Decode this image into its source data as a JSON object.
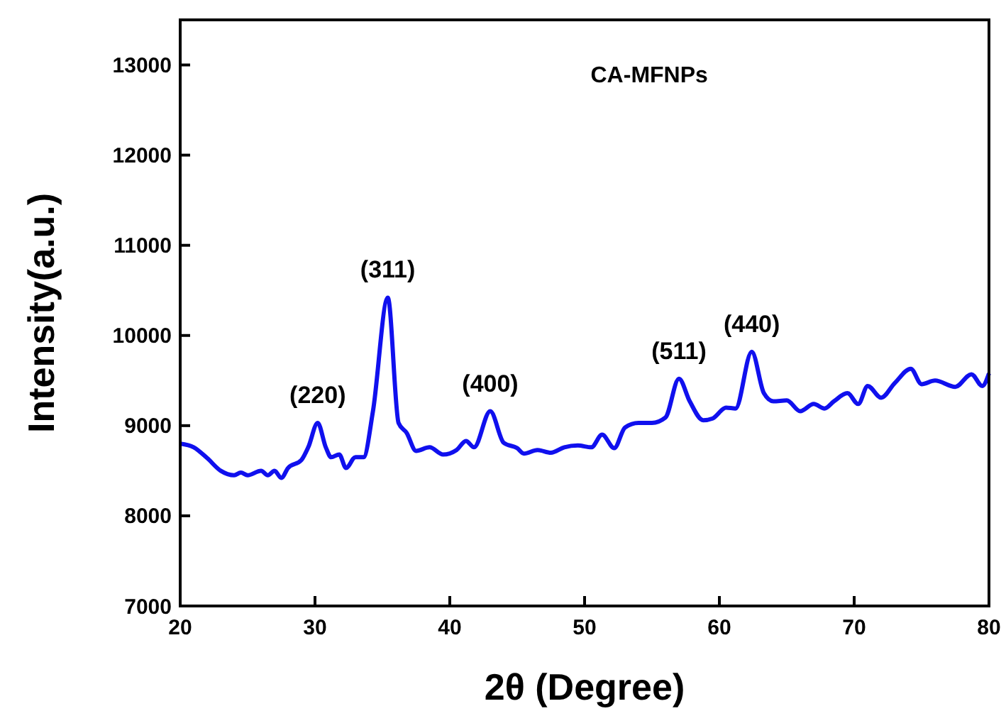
{
  "chart_data": {
    "type": "line",
    "xlabel": "2θ (Degree)",
    "ylabel": "Intensity(a.u.)",
    "xlim": [
      20,
      80
    ],
    "xticks": [
      20,
      30,
      40,
      50,
      60,
      70,
      80
    ],
    "ylim": [
      7000,
      13500
    ],
    "yticks": [
      7000,
      8000,
      9000,
      10000,
      11000,
      12000,
      13000
    ],
    "grid": false,
    "marker": "none",
    "line_style": "solid",
    "annotations": [
      "CA-MFNPs",
      {
        "text": "(220)",
        "x": 30.2,
        "y": 9030
      },
      {
        "text": "(311)",
        "x": 35.4,
        "y": 10420
      },
      {
        "text": "(400)",
        "x": 43,
        "y": 9160
      },
      {
        "text": "(511)",
        "x": 57,
        "y": 9520
      },
      {
        "text": "(440)",
        "x": 62.4,
        "y": 9820
      }
    ],
    "series": [
      {
        "color": "#1010ee",
        "x": [
          20,
          21,
          22,
          23,
          24,
          24.5,
          25,
          26,
          26.5,
          27,
          27.5,
          28,
          29,
          29.5,
          30.2,
          30.8,
          31.2,
          31.8,
          32.3,
          33,
          33.6,
          34.3,
          35.4,
          36.2,
          36.8,
          37.5,
          38.5,
          39.5,
          40.5,
          41.2,
          41.8,
          43,
          44,
          45,
          45.5,
          46.5,
          47.5,
          48.5,
          49.5,
          50.5,
          51.3,
          52.2,
          53,
          54,
          55,
          56,
          57,
          57.8,
          58.8,
          59.5,
          60.5,
          61.2,
          62.4,
          63.3,
          64,
          65,
          66,
          67,
          67.8,
          68.5,
          69.5,
          70.3,
          71,
          72,
          73,
          74.2,
          75,
          76,
          77.5,
          78.7,
          79.5,
          80
        ],
        "values": [
          8800,
          8760,
          8640,
          8500,
          8450,
          8480,
          8450,
          8500,
          8450,
          8500,
          8420,
          8530,
          8620,
          8760,
          9030,
          8760,
          8650,
          8680,
          8530,
          8650,
          8650,
          9160,
          10420,
          9030,
          8920,
          8720,
          8760,
          8680,
          8730,
          8830,
          8760,
          9160,
          8810,
          8750,
          8690,
          8730,
          8700,
          8760,
          8780,
          8760,
          8900,
          8750,
          8980,
          9030,
          9030,
          9090,
          9520,
          9270,
          9060,
          9080,
          9200,
          9190,
          9820,
          9360,
          9270,
          9280,
          9160,
          9240,
          9190,
          9270,
          9360,
          9240,
          9440,
          9310,
          9470,
          9630,
          9460,
          9500,
          9430,
          9570,
          9440,
          9580
        ]
      }
    ]
  }
}
